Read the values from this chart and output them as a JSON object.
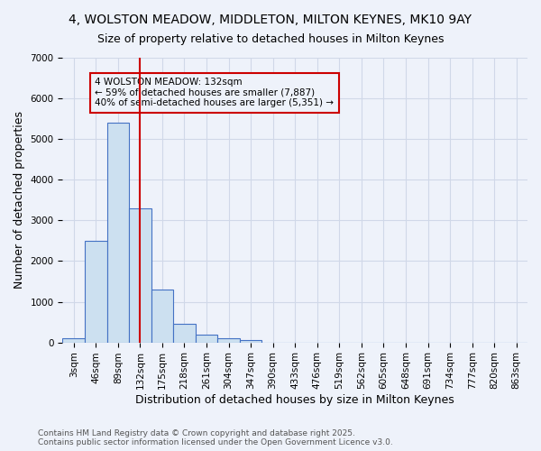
{
  "title_line1": "4, WOLSTON MEADOW, MIDDLETON, MILTON KEYNES, MK10 9AY",
  "title_line2": "Size of property relative to detached houses in Milton Keynes",
  "xlabel": "Distribution of detached houses by size in Milton Keynes",
  "ylabel": "Number of detached properties",
  "bin_labels": [
    "3sqm",
    "46sqm",
    "89sqm",
    "132sqm",
    "175sqm",
    "218sqm",
    "261sqm",
    "304sqm",
    "347sqm",
    "390sqm",
    "433sqm",
    "476sqm",
    "519sqm",
    "562sqm",
    "605sqm",
    "648sqm",
    "691sqm",
    "734sqm",
    "777sqm",
    "820sqm",
    "863sqm"
  ],
  "bar_values": [
    100,
    2500,
    5400,
    3300,
    1300,
    450,
    200,
    100,
    50,
    0,
    0,
    0,
    0,
    0,
    0,
    0,
    0,
    0,
    0,
    0,
    0
  ],
  "bar_color": "#cce0f0",
  "bar_edgecolor": "#4472c4",
  "red_line_x": 3,
  "red_line_color": "#cc0000",
  "annotation_text": "4 WOLSTON MEADOW: 132sqm\n← 59% of detached houses are smaller (7,887)\n40% of semi-detached houses are larger (5,351) →",
  "annotation_box_edgecolor": "#cc0000",
  "ylim": [
    0,
    7000
  ],
  "yticks": [
    0,
    1000,
    2000,
    3000,
    4000,
    5000,
    6000,
    7000
  ],
  "grid_color": "#d0d8e8",
  "background_color": "#eef2fa",
  "footer_line1": "Contains HM Land Registry data © Crown copyright and database right 2025.",
  "footer_line2": "Contains public sector information licensed under the Open Government Licence v3.0.",
  "title_fontsize": 10,
  "subtitle_fontsize": 9,
  "axis_label_fontsize": 9,
  "tick_fontsize": 7.5,
  "annotation_fontsize": 7.5,
  "footer_fontsize": 6.5
}
